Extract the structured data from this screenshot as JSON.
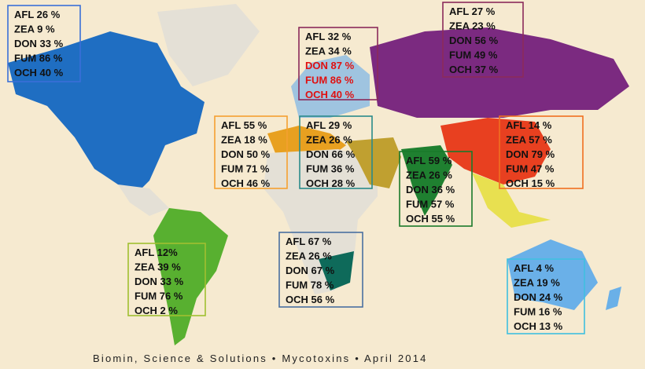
{
  "boxes": [
    {
      "region_color": "#3a6fd8",
      "lines": [
        "AFL 26 %",
        "ZEA 9 %",
        "DON 33 %",
        "FUM 86 %",
        "OCH 40 %"
      ]
    },
    {
      "region_color": "#8b2a5a",
      "lines": [
        "AFL 32 %",
        "ZEA 34 %",
        "DON 87 %",
        "FUM 86 %",
        "OCH 40 %"
      ],
      "line_colors": [
        "#111111",
        "#111111",
        "#e01010",
        "#e01010",
        "#e01010"
      ]
    },
    {
      "region_color": "#8b2a5a",
      "lines": [
        "AFL 27 %",
        "ZEA 23 %",
        "DON 56 %",
        "FUM 49 %",
        "OCH 37 %"
      ]
    },
    {
      "region_color": "#f5a030",
      "lines": [
        "AFL 55 %",
        "ZEA 18 %",
        "DON 50 %",
        "FUM 71 %",
        "OCH 46 %"
      ]
    },
    {
      "region_color": "#2a8a8a",
      "lines": [
        "AFL 29 %",
        "ZEA 26 %",
        "DON 66 %",
        "FUM 36 %",
        "OCH 28 %"
      ]
    },
    {
      "region_color": "#1a7a2a",
      "lines": [
        "AFL 59 %",
        "ZEA 26 %",
        "DON 36 %",
        "FUM 57 %",
        "OCH 55 %"
      ]
    },
    {
      "region_color": "#f07020",
      "lines": [
        "AFL 14 %",
        "ZEA 57 %",
        "DON 79 %",
        "FUM 47 %",
        "OCH 15 %"
      ]
    },
    {
      "region_color": "#a0c030",
      "lines": [
        "AFL 12%",
        "ZEA 39 %",
        "DON 33 %",
        "FUM 76 %",
        "OCH 2 %"
      ]
    },
    {
      "region_color": "#4a6fa0",
      "lines": [
        "AFL 67 %",
        "ZEA 26 %",
        "DON 67 %",
        "FUM 78 %",
        "OCH 56 %"
      ]
    },
    {
      "region_color": "#40c0e0",
      "lines": [
        "AFL 4 %",
        "ZEA 19 %",
        "DON 24 %",
        "FUM 16 %",
        "OCH 13 %"
      ]
    }
  ],
  "footer": "Biomin, Science & Solutions • Mycotoxins • April 2014"
}
